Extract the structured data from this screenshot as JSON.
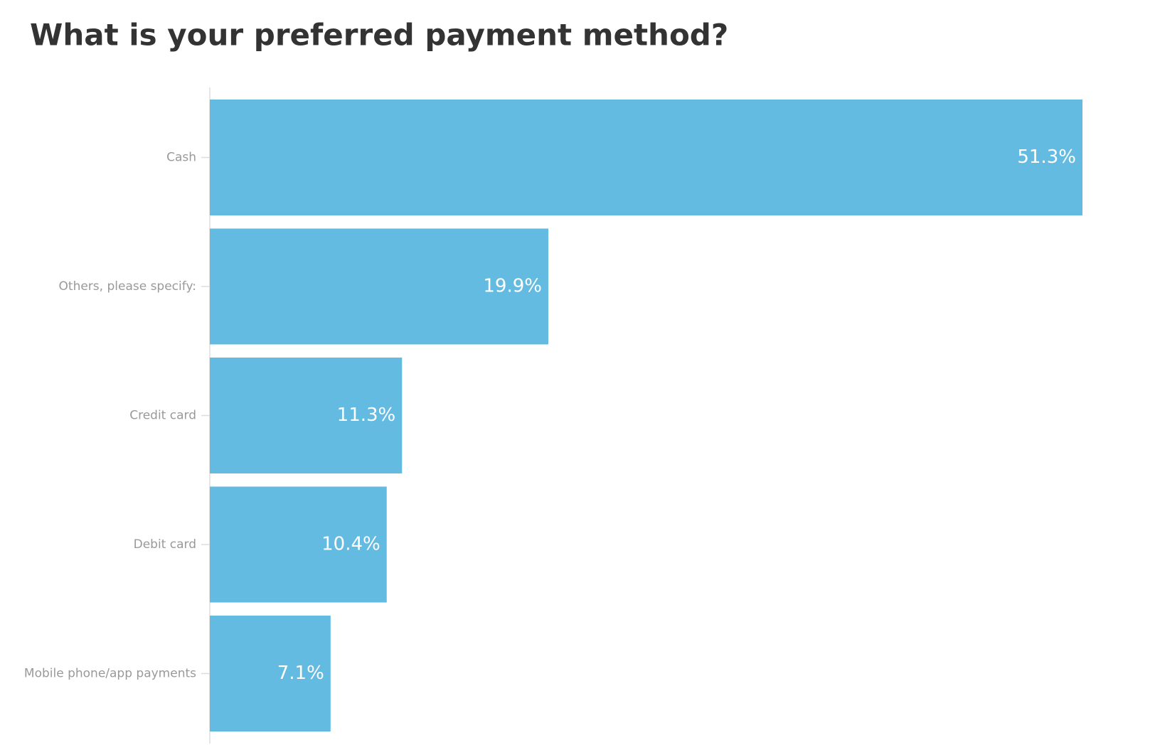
{
  "chart_data": {
    "type": "bar",
    "orientation": "horizontal",
    "title": "What is your preferred payment method?",
    "categories": [
      "Cash",
      "Others, please specify:",
      "Credit card",
      "Debit card",
      "Mobile phone/app payments"
    ],
    "values": [
      51.3,
      19.9,
      11.3,
      10.4,
      7.1
    ],
    "value_labels": [
      "51.3%",
      "19.9%",
      "11.3%",
      "10.4%",
      "7.1%"
    ],
    "color": "#63bbe2"
  }
}
